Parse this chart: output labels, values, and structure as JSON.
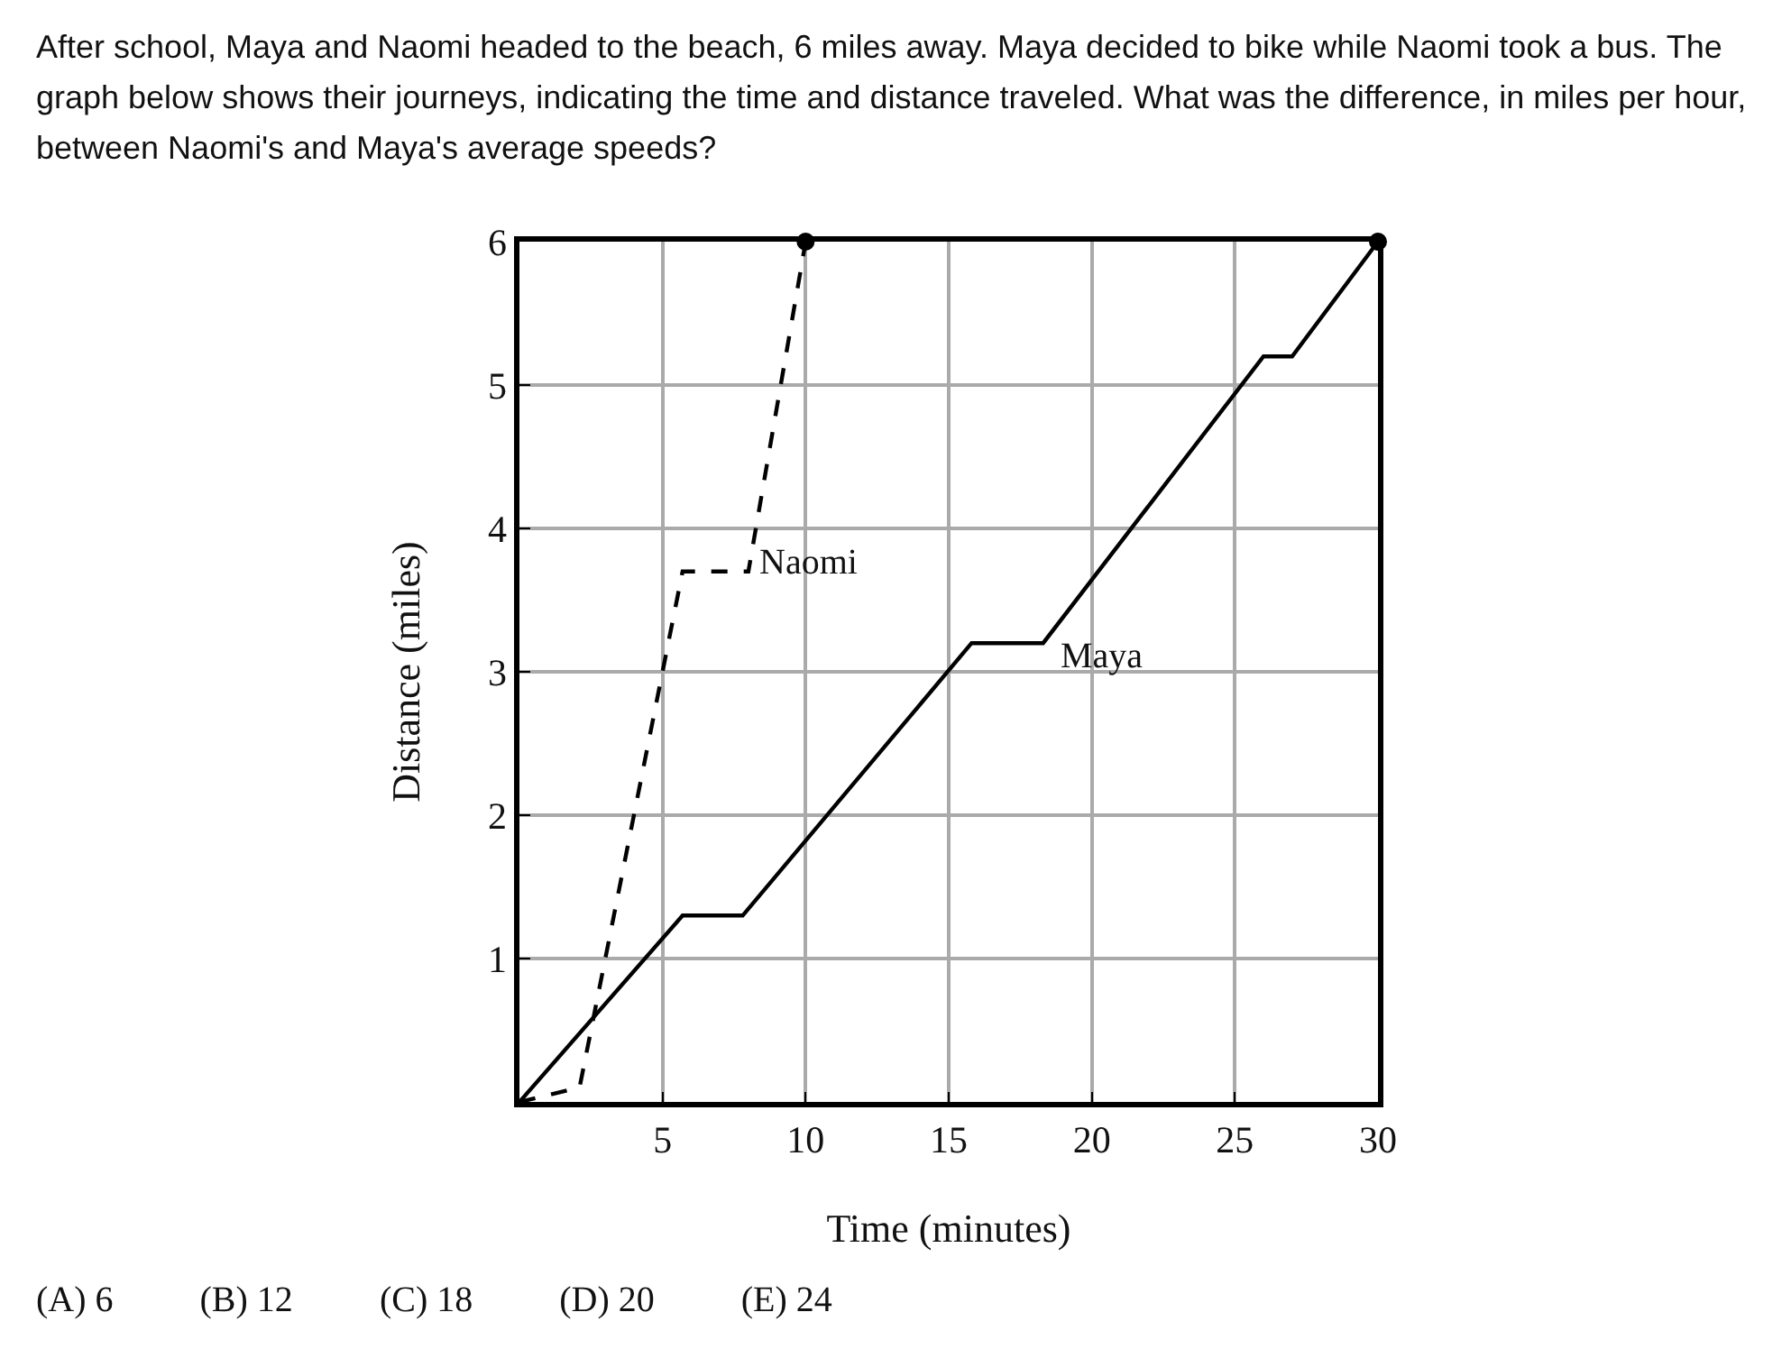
{
  "chart_data": {
    "type": "line",
    "title": "After school, Maya and Naomi headed to the beach, 6 miles away. Maya decided to bike while Naomi took a bus. The graph below shows their journeys, indicating the time and distance traveled. What was the difference, in miles per hour, between Naomi's and Maya's average speeds?",
    "xlabel": "Time (minutes)",
    "ylabel": "Distance (miles)",
    "xlim": [
      0,
      30
    ],
    "ylim": [
      0,
      6
    ],
    "xticks": [
      5,
      10,
      15,
      20,
      25,
      30
    ],
    "yticks": [
      1,
      2,
      3,
      4,
      5,
      6
    ],
    "grid": true,
    "legend": false,
    "marker": "none",
    "series": [
      {
        "name": "Naomi",
        "color": "#000000",
        "line_style": "dashed",
        "x": [
          0,
          2.1,
          5.7,
          8,
          10
        ],
        "values": [
          0,
          0.1,
          3.7,
          3.7,
          6
        ]
      },
      {
        "name": "Maya",
        "color": "#000000",
        "line_style": "solid",
        "x": [
          0,
          5.7,
          7.8,
          15.8,
          18.3,
          26,
          27,
          30
        ],
        "values": [
          0,
          1.3,
          1.3,
          3.2,
          3.2,
          5.2,
          5.2,
          6
        ]
      },
      {
        "type": "scatter",
        "color": "#000000",
        "marker": "circle",
        "x": [
          10,
          30
        ],
        "values": [
          6,
          6
        ]
      }
    ],
    "annotations": [
      "(A) 6",
      "(B) 12",
      "(C) 18",
      "(D) 20",
      "(E) 24"
    ]
  }
}
